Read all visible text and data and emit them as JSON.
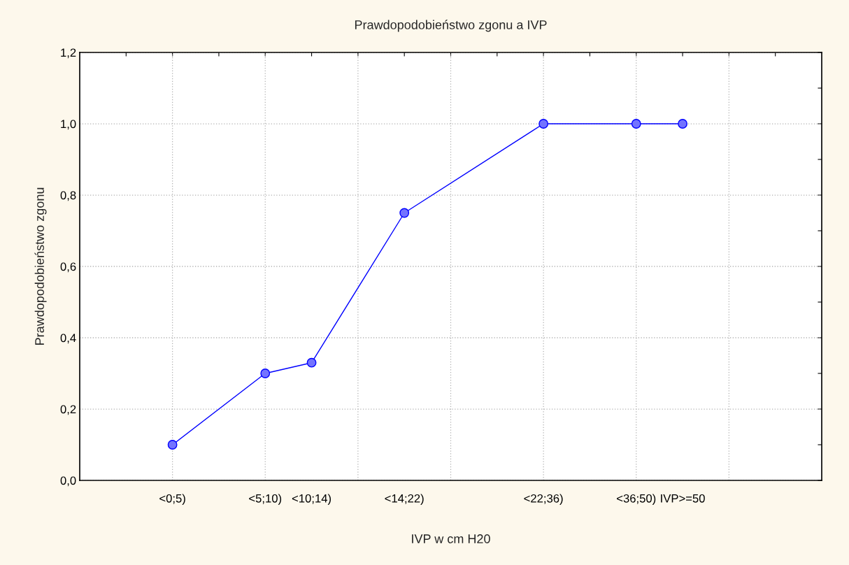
{
  "chart_data": {
    "type": "line",
    "title": "Prawdopodobieństwo zgonu a IVP",
    "xlabel": "IVP w cm H20",
    "ylabel": "Prawdopodobieństwo zgonu",
    "categories": [
      null,
      "<0;5)",
      null,
      "<5;10)",
      "<10;14)",
      null,
      "<14;22)",
      null,
      null,
      "<22;36)",
      null,
      "<36;50)",
      "IVP>=50",
      null,
      null
    ],
    "series": [
      {
        "color": "#0000ff",
        "values": [
          null,
          0.1,
          null,
          0.3,
          0.33,
          null,
          0.75,
          null,
          null,
          1.0,
          null,
          1.0,
          1.0,
          null,
          null
        ]
      }
    ],
    "ylim": [
      0,
      1.2
    ],
    "yticks": [
      {
        "value": 0,
        "label": "0,0"
      },
      {
        "value": 0.1,
        "label": null
      },
      {
        "value": 0.2,
        "label": "0,2"
      },
      {
        "value": 0.3,
        "label": null
      },
      {
        "value": 0.4,
        "label": "0,4"
      },
      {
        "value": 0.5,
        "label": null
      },
      {
        "value": 0.6,
        "label": "0,6"
      },
      {
        "value": 0.7,
        "label": null
      },
      {
        "value": 0.8,
        "label": "0,8"
      },
      {
        "value": 0.9,
        "label": null
      },
      {
        "value": 1.0,
        "label": "1,0"
      },
      {
        "value": 1.1,
        "label": null
      },
      {
        "value": 1.2,
        "label": "1,2"
      }
    ],
    "grid": true,
    "marker": "circle",
    "line_style": "solid"
  }
}
